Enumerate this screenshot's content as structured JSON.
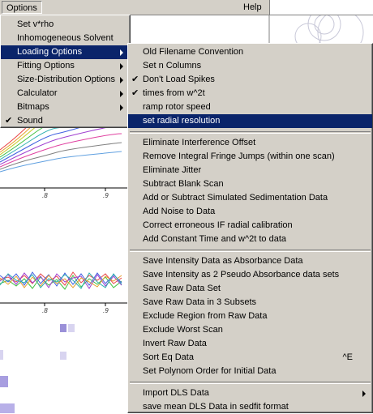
{
  "menubar": {
    "options_label": "Options",
    "help_label": "Help"
  },
  "options_menu": {
    "items": [
      {
        "label": "Set v*rho",
        "checked": false,
        "submenu": false
      },
      {
        "label": "Inhomogeneous Solvent",
        "checked": false,
        "submenu": false
      },
      {
        "label": "Loading Options",
        "checked": false,
        "submenu": true,
        "highlighted": true
      },
      {
        "label": "Fitting Options",
        "checked": false,
        "submenu": true
      },
      {
        "label": "Size-Distribution Options",
        "checked": false,
        "submenu": true
      },
      {
        "label": "Calculator",
        "checked": false,
        "submenu": true
      },
      {
        "label": "Bitmaps",
        "checked": false,
        "submenu": true
      },
      {
        "label": "Sound",
        "checked": true,
        "submenu": false
      }
    ]
  },
  "loading_options_menu": {
    "group1": [
      {
        "label": "Old Filename Convention",
        "checked": false
      },
      {
        "label": "Set n Columns",
        "checked": false
      },
      {
        "label": "Don't Load Spikes",
        "checked": true
      },
      {
        "label": "times from w^2t",
        "checked": true
      },
      {
        "label": "ramp rotor speed",
        "checked": false
      },
      {
        "label": "set radial resolution",
        "checked": false,
        "highlighted": true
      }
    ],
    "group2": [
      {
        "label": "Eliminate Interference Offset"
      },
      {
        "label": "Remove Integral Fringe Jumps (within one scan)"
      },
      {
        "label": "Eliminate Jitter"
      },
      {
        "label": "Subtract Blank Scan"
      },
      {
        "label": "Add or Subtract Simulated Sedimentation Data"
      },
      {
        "label": "Add Noise to Data"
      },
      {
        "label": "Correct erroneous IF radial calibration"
      },
      {
        "label": "Add Constant Time and w^2t to data"
      }
    ],
    "group3": [
      {
        "label": "Save Intensity Data as Absorbance Data"
      },
      {
        "label": "Save Intensity as 2 Pseudo Absorbance data sets"
      },
      {
        "label": "Save Raw Data Set"
      },
      {
        "label": "Save Raw Data in 3 Subsets"
      },
      {
        "label": "Exclude Region from Raw Data"
      },
      {
        "label": "Exclude Worst Scan"
      },
      {
        "label": "Invert Raw Data"
      },
      {
        "label": "Sort Eq Data",
        "shortcut": "^E"
      },
      {
        "label": "Set Polynom Order for Initial Data"
      }
    ],
    "group4": [
      {
        "label": "Import DLS Data",
        "submenu": true
      },
      {
        "label": "save mean DLS Data in sedfit format"
      }
    ]
  },
  "background": {
    "tick_labels_upper": [
      ".8",
      ".9"
    ],
    "tick_labels_lower": [
      ".8",
      ".9"
    ]
  },
  "colors": {
    "menu_face": "#d4d0c8",
    "highlight": "#0a246a",
    "highlight_text": "#ffffff"
  }
}
